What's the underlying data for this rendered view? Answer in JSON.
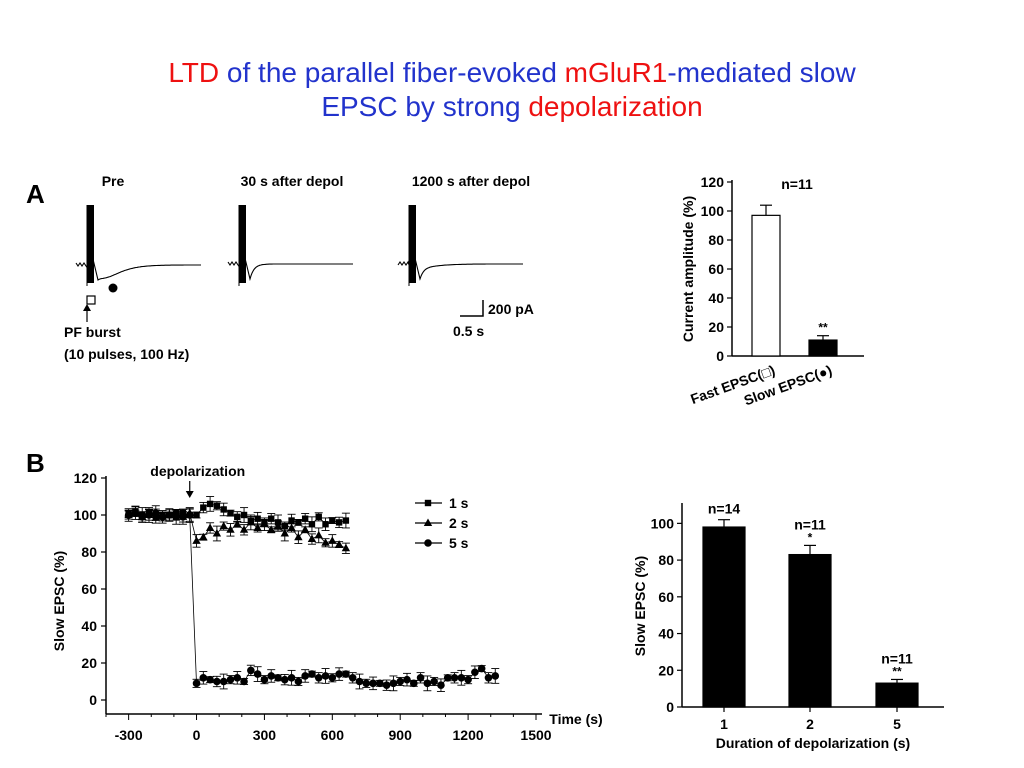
{
  "slide": {
    "title_parts": [
      {
        "text": "LTD",
        "color": "#ee1111"
      },
      {
        "text": " of the parallel fiber-evoked ",
        "color": "#2233cc"
      },
      {
        "text": "mGluR1",
        "color": "#ee1111"
      },
      {
        "text": "-mediated slow",
        "color": "#2233cc"
      },
      {
        "text": "EPSC by strong ",
        "color": "#2233cc"
      },
      {
        "text": "depolarization",
        "color": "#ee1111"
      }
    ],
    "panel_a_label": "A",
    "panel_b_label": "B"
  },
  "traces": {
    "labels": [
      "Pre",
      "30 s after depol",
      "1200 s after depol"
    ],
    "stim_label": "PF burst",
    "stim_detail": "(10 pulses, 100 Hz)",
    "scale_current": "200 pA",
    "scale_time": "0.5 s"
  },
  "chart_data": [
    {
      "id": "A-bar",
      "type": "bar",
      "categories": [
        "Fast EPSC(□)",
        "Slow EPSC(●)"
      ],
      "values": [
        97,
        11
      ],
      "errors": [
        7,
        3
      ],
      "fills": [
        "#ffffff",
        "#000000"
      ],
      "ylabel": "Current amplitude (%)",
      "ylim": [
        0,
        120
      ],
      "yticks": [
        0,
        20,
        40,
        60,
        80,
        100,
        120
      ],
      "annotations": {
        "n": "n=11",
        "sig": [
          "",
          "**"
        ]
      }
    },
    {
      "id": "B-timecourse",
      "type": "scatter",
      "xlabel": "Time (s)",
      "ylabel": "Slow EPSC (%)",
      "xlim": [
        -400,
        1500
      ],
      "ylim": [
        0,
        120
      ],
      "xticks": [
        -300,
        0,
        300,
        600,
        900,
        1200,
        1500
      ],
      "yticks": [
        0,
        20,
        40,
        60,
        80,
        100,
        120
      ],
      "annotation": "depolarization",
      "legend": [
        "1 s",
        "2 s",
        "5 s"
      ],
      "series": [
        {
          "name": "1 s",
          "marker": "square",
          "x": [
            -300,
            -270,
            -240,
            -210,
            -180,
            -150,
            -120,
            -90,
            -60,
            -30,
            0,
            30,
            60,
            90,
            120,
            150,
            180,
            210,
            240,
            270,
            300,
            330,
            360,
            390,
            420,
            450,
            480,
            510,
            540,
            570,
            600,
            630,
            660
          ],
          "y": [
            101,
            102,
            100,
            101,
            99,
            100,
            100,
            99,
            101,
            100,
            100,
            104,
            106,
            105,
            103,
            101,
            99,
            100,
            97,
            98,
            96,
            98,
            96,
            94,
            97,
            96,
            98,
            95,
            99,
            95,
            97,
            96,
            97
          ]
        },
        {
          "name": "2 s",
          "marker": "triangle",
          "x": [
            -300,
            -270,
            -240,
            -210,
            -180,
            -150,
            -120,
            -90,
            -60,
            -30,
            0,
            30,
            60,
            90,
            120,
            150,
            180,
            210,
            240,
            270,
            300,
            330,
            360,
            390,
            420,
            450,
            480,
            510,
            540,
            570,
            600,
            630,
            660
          ],
          "y": [
            100,
            101,
            99,
            100,
            101,
            99,
            100,
            100,
            99,
            101,
            86,
            88,
            93,
            90,
            94,
            92,
            95,
            92,
            96,
            93,
            95,
            92,
            94,
            90,
            93,
            88,
            92,
            87,
            89,
            85,
            86,
            84,
            82
          ]
        },
        {
          "name": "5 s",
          "marker": "circle",
          "x": [
            -300,
            -270,
            -240,
            -210,
            -180,
            -150,
            -120,
            -90,
            -60,
            -30,
            0,
            30,
            60,
            90,
            120,
            150,
            180,
            210,
            240,
            270,
            300,
            330,
            360,
            390,
            420,
            450,
            480,
            510,
            540,
            570,
            600,
            630,
            660,
            690,
            720,
            750,
            780,
            810,
            840,
            870,
            900,
            930,
            960,
            990,
            1020,
            1050,
            1080,
            1110,
            1140,
            1170,
            1200,
            1230,
            1260,
            1290,
            1320
          ],
          "y": [
            100,
            101,
            99,
            100,
            101,
            99,
            100,
            101,
            99,
            100,
            9,
            12,
            11,
            10,
            10,
            11,
            12,
            10,
            16,
            14,
            11,
            13,
            12,
            11,
            12,
            10,
            13,
            14,
            12,
            13,
            12,
            14,
            14,
            12,
            10,
            9,
            9,
            9,
            8,
            9,
            10,
            11,
            9,
            12,
            9,
            10,
            8,
            12,
            12,
            12,
            11,
            15,
            17,
            12,
            13
          ]
        }
      ]
    },
    {
      "id": "B-bar",
      "type": "bar",
      "categories": [
        "1",
        "2",
        "5"
      ],
      "values": [
        98,
        83,
        13
      ],
      "errors": [
        4,
        5,
        2
      ],
      "xlabel": "Duration of depolarization (s)",
      "ylabel": "Slow EPSC (%)",
      "ylim": [
        0,
        110
      ],
      "yticks": [
        0,
        20,
        40,
        60,
        80,
        100
      ],
      "annotations": {
        "n": [
          "n=14",
          "n=11",
          "n=11"
        ],
        "sig": [
          "",
          "*",
          "**"
        ]
      }
    }
  ]
}
